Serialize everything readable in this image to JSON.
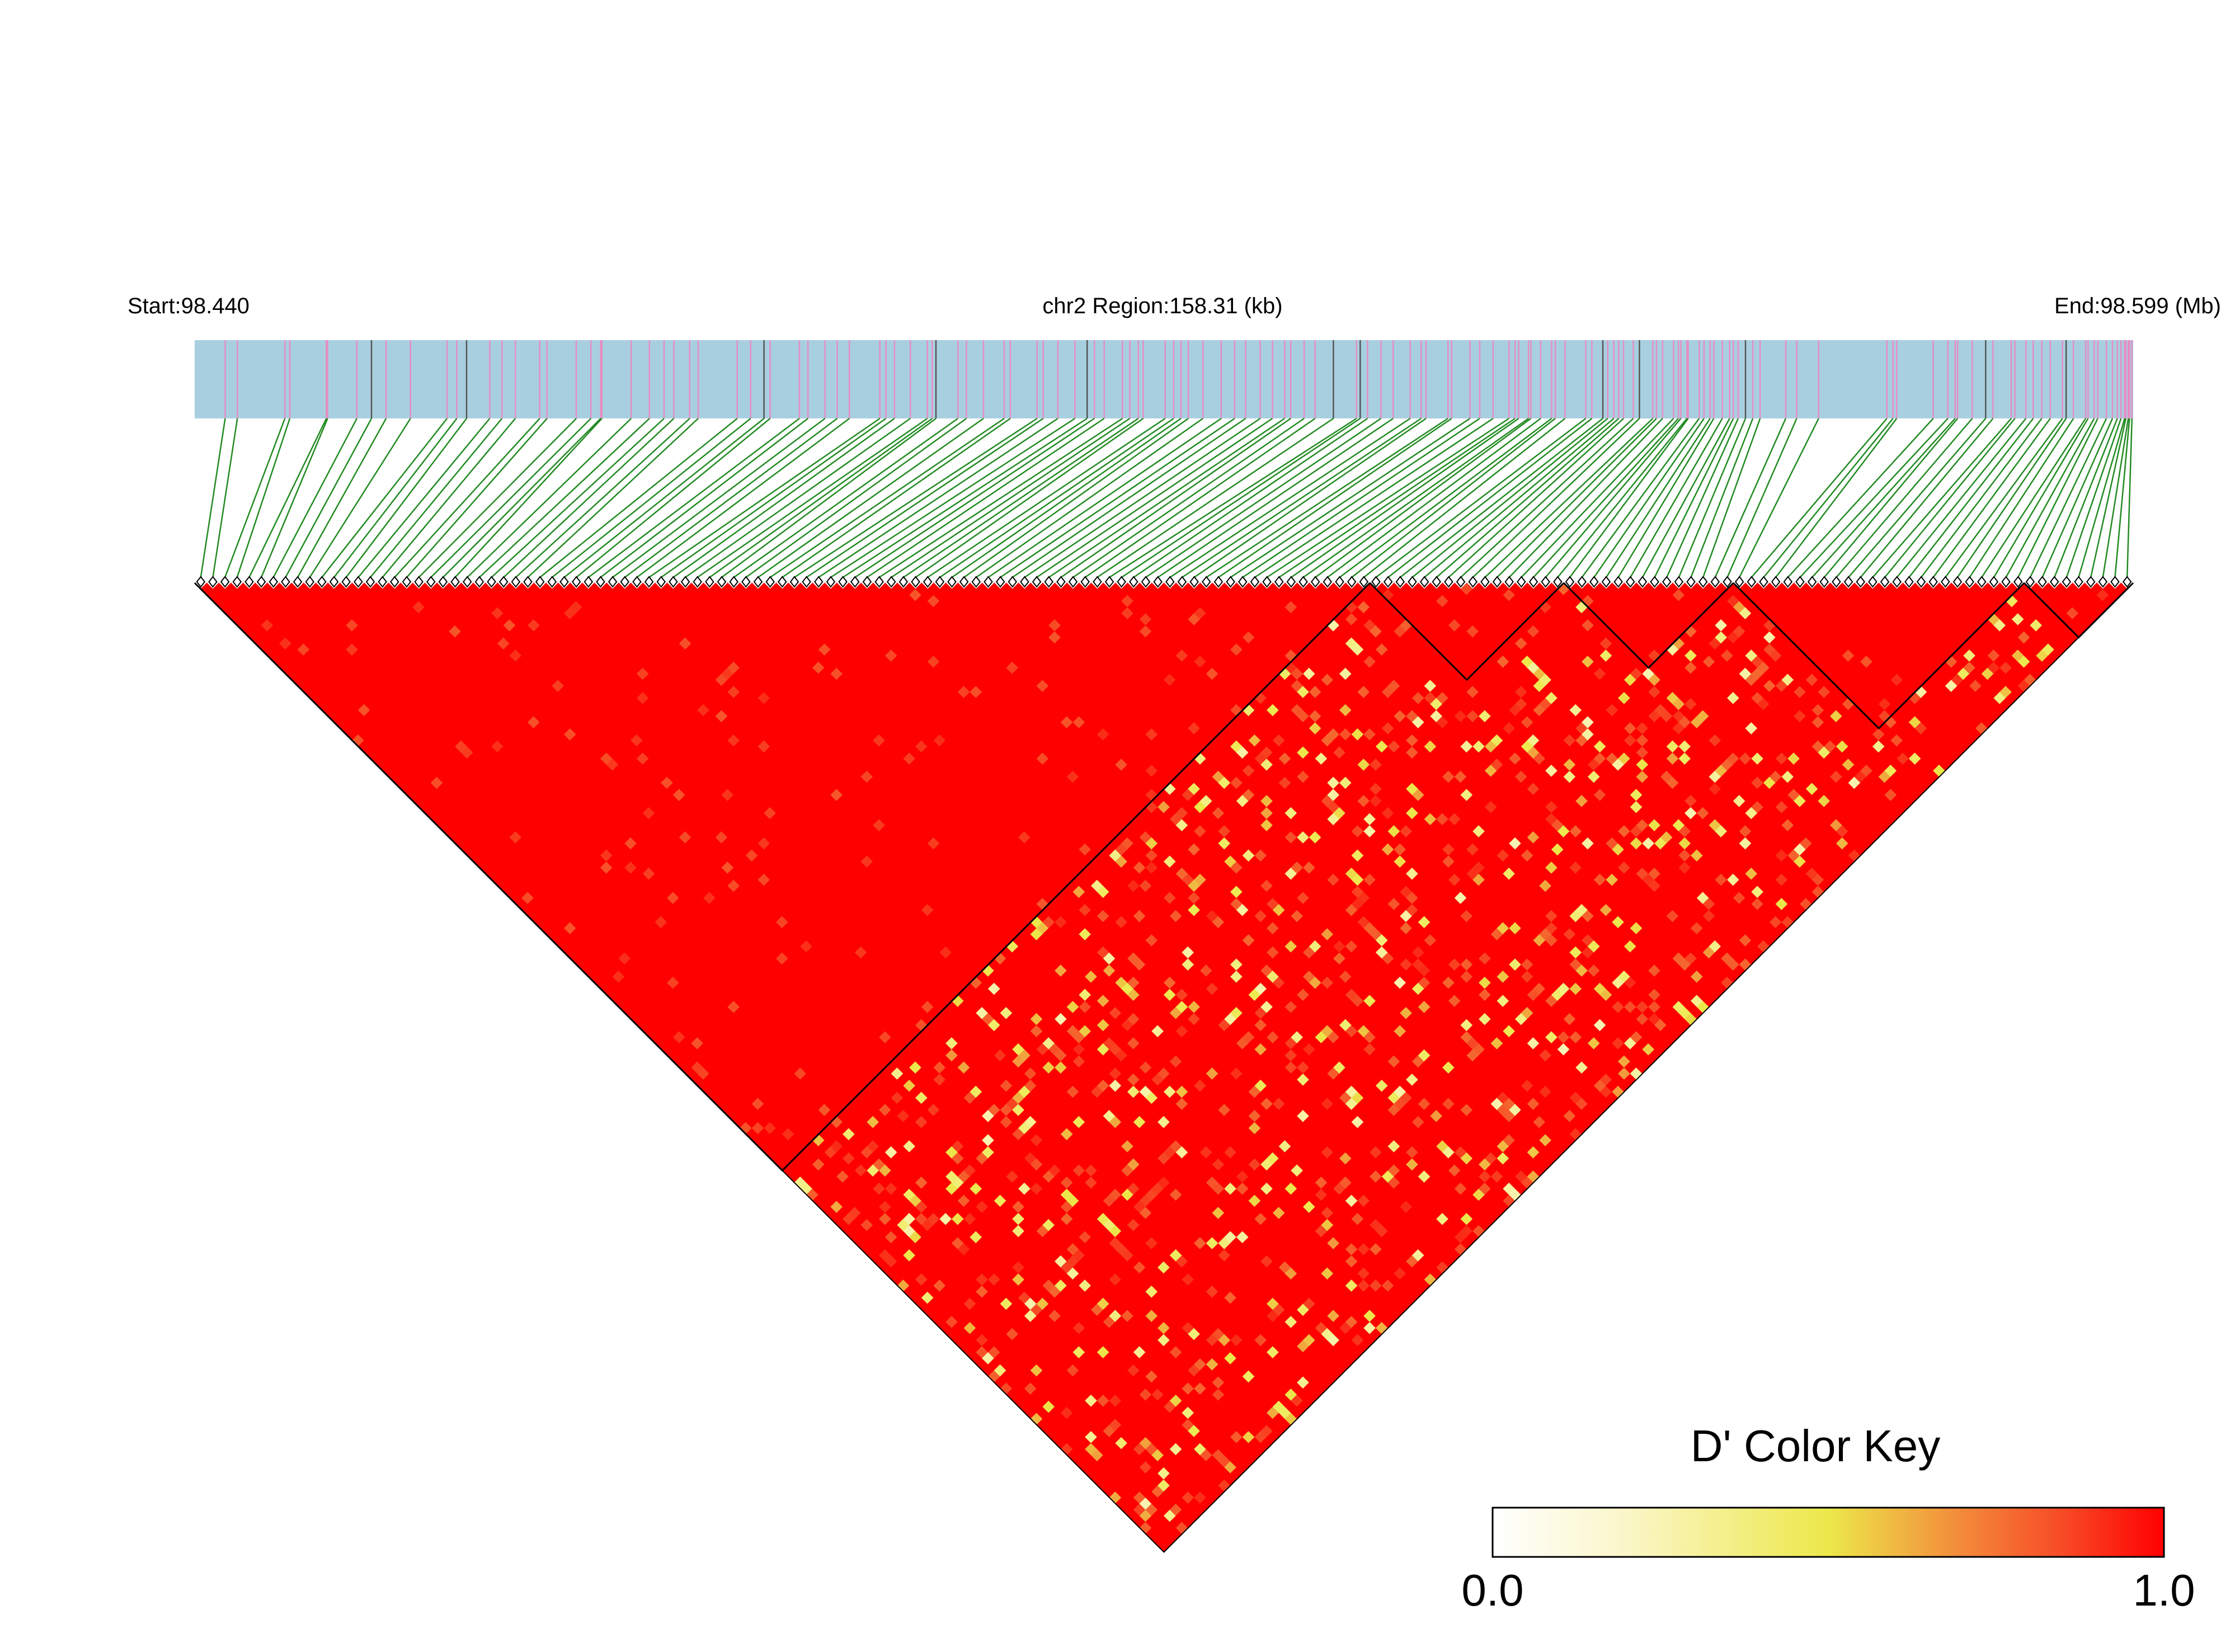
{
  "chart_data": {
    "type": "heatmap",
    "title": "",
    "header": {
      "start_label": "Start:98.440",
      "region_label": "chr2 Region:158.31 (kb)",
      "end_label": "End:98.599 (Mb)"
    },
    "chromosome": "chr2",
    "region_start_mb": 98.44,
    "region_end_mb": 98.599,
    "region_length_kb": 158.31,
    "metric": "D'",
    "snp_count": 160,
    "matrix_layout": "upper-triangle rotated 45 degrees",
    "snp_positions_mb": [
      98.4425,
      98.4435,
      98.4474,
      98.4478,
      98.4508,
      98.4509,
      98.4533,
      98.4545,
      98.4557,
      98.4577,
      98.4607,
      98.4615,
      98.4623,
      98.4642,
      98.4652,
      98.4663,
      98.4683,
      98.4689,
      98.4713,
      98.4725,
      98.4733,
      98.4734,
      98.4758,
      98.4773,
      98.4785,
      98.4793,
      98.4806,
      98.4813,
      98.4845,
      98.4856,
      98.4867,
      98.4872,
      98.4896,
      98.4903,
      98.4917,
      98.4927,
      98.4937,
      98.4962,
      98.4967,
      98.4974,
      98.4987,
      98.5001,
      98.5005,
      98.5008,
      98.5026,
      98.5033,
      98.5047,
      98.5064,
      98.5069,
      98.5091,
      98.5096,
      98.5108,
      98.5122,
      98.5132,
      98.5138,
      98.5146,
      98.5161,
      98.5167,
      98.5174,
      98.5178,
      98.5196,
      98.5203,
      98.5209,
      98.5215,
      98.5227,
      98.5242,
      98.5253,
      98.5262,
      98.5274,
      98.5284,
      98.5294,
      98.5299,
      98.531,
      98.5319,
      98.5334,
      98.5353,
      98.5356,
      98.5362,
      98.5373,
      98.5383,
      98.5397,
      98.5406,
      98.541,
      98.5428,
      98.5431,
      98.5446,
      98.5454,
      98.5465,
      98.5478,
      98.5483,
      98.5486,
      98.5494,
      98.5496,
      98.5504,
      98.5513,
      98.5516,
      98.5524,
      98.5541,
      98.5546,
      98.5555,
      98.5559,
      98.5564,
      98.5568,
      98.5572,
      98.558,
      98.5585,
      98.5596,
      98.5599,
      98.5604,
      98.5613,
      98.5617,
      98.5619,
      98.5624,
      98.5625,
      98.5634,
      98.5638,
      98.5643,
      98.5646,
      98.5653,
      98.5659,
      98.5662,
      98.5666,
      98.5672,
      98.5678,
      98.5684,
      98.5705,
      98.5714,
      98.5732,
      98.5788,
      98.5793,
      98.5796,
      98.5826,
      98.5838,
      98.5844,
      98.5846,
      98.5858,
      98.5869,
      98.5875,
      98.589,
      98.5893,
      98.5902,
      98.5908,
      98.5915,
      98.5922,
      98.5932,
      98.5935,
      98.5941,
      98.5951,
      98.5953,
      98.5958,
      98.5961,
      98.5968,
      98.5973,
      98.5977,
      98.598,
      98.5983,
      98.5984,
      98.5986,
      98.5987,
      98.5989
    ],
    "ld_blocks_snp_index_ranges": [
      [
        0,
        96
      ],
      [
        97,
        112
      ],
      [
        113,
        126
      ],
      [
        127,
        150
      ],
      [
        151,
        159
      ]
    ],
    "cell_value_summary": "D' is near 1.0 (red) for most SNP pairs; scattered lower-value cells (0.3-0.9, orange to pale yellow) occur mainly between the large first block and the downstream SNPs",
    "color_key": {
      "title": "D' Color Key",
      "min_label": "0.0",
      "max_label": "1.0",
      "min": 0.0,
      "max": 1.0,
      "stops": [
        {
          "value": 0.0,
          "color": "#ffffff"
        },
        {
          "value": 0.2,
          "color": "#fbf6c8"
        },
        {
          "value": 0.5,
          "color": "#ece84a"
        },
        {
          "value": 0.7,
          "color": "#f3893a"
        },
        {
          "value": 0.85,
          "color": "#f74a26"
        },
        {
          "value": 1.0,
          "color": "#ff0000"
        }
      ]
    },
    "colors": {
      "gene_track": "#a8cfe0",
      "snp_tick": "#e58ec4",
      "snp_tick_alt": "#555555",
      "connector": "#228b22",
      "block_outline": "#000000"
    }
  }
}
